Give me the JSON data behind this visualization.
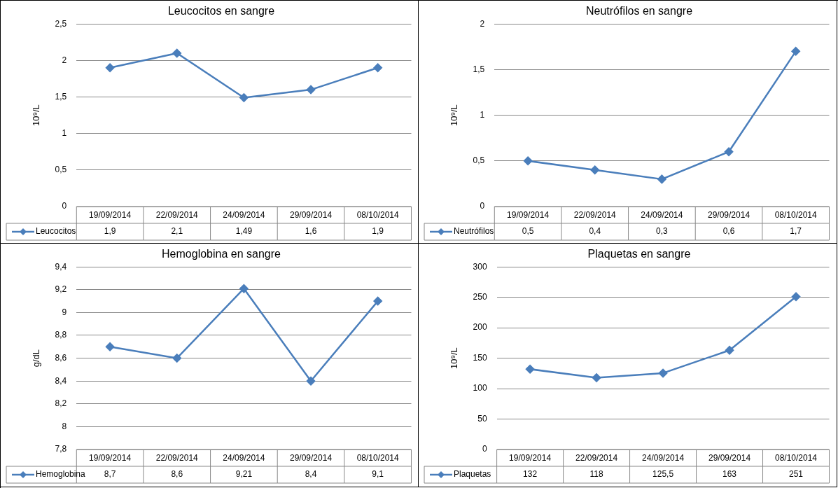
{
  "chart_data": [
    {
      "type": "line",
      "title": "Leucocitos en sangre",
      "ylabel": "10⁹/L",
      "categories": [
        "19/09/2014",
        "22/09/2014",
        "24/09/2014",
        "29/09/2014",
        "08/10/2014"
      ],
      "series": [
        {
          "name": "Leucocitos",
          "color": "#4a7ebb",
          "values": [
            1.9,
            2.1,
            1.49,
            1.6,
            1.9
          ],
          "value_labels": [
            "1,9",
            "2,1",
            "1,49",
            "1,6",
            "1,9"
          ]
        }
      ],
      "ylim": [
        0,
        2.5
      ],
      "yticks": [
        0,
        {
          "value": 0.5,
          "label": "0,5"
        },
        1,
        {
          "value": 1.5,
          "label": "1,5"
        },
        2,
        {
          "value": 2.5,
          "label": "2,5"
        }
      ],
      "grid": "y",
      "legend": "bottom",
      "marker": "diamond"
    },
    {
      "type": "line",
      "title": "Neutrófilos en sangre",
      "ylabel": "10⁹/L",
      "categories": [
        "19/09/2014",
        "22/09/2014",
        "24/09/2014",
        "29/09/2014",
        "08/10/2014"
      ],
      "series": [
        {
          "name": "Neutrófilos",
          "color": "#4a7ebb",
          "values": [
            0.5,
            0.4,
            0.3,
            0.6,
            1.7
          ],
          "value_labels": [
            "0,5",
            "0,4",
            "0,3",
            "0,6",
            "1,7"
          ]
        }
      ],
      "ylim": [
        0,
        2
      ],
      "yticks": [
        0,
        {
          "value": 0.5,
          "label": "0,5"
        },
        1,
        {
          "value": 1.5,
          "label": "1,5"
        },
        2
      ],
      "grid": "y",
      "legend": "bottom",
      "marker": "diamond"
    },
    {
      "type": "line",
      "title": "Hemoglobina en sangre",
      "ylabel": "g/dL",
      "categories": [
        "19/09/2014",
        "22/09/2014",
        "24/09/2014",
        "29/09/2014",
        "08/10/2014"
      ],
      "series": [
        {
          "name": "Hemoglobina",
          "color": "#4a7ebb",
          "values": [
            8.7,
            8.6,
            9.21,
            8.4,
            9.1
          ],
          "value_labels": [
            "8,7",
            "8,6",
            "9,21",
            "8,4",
            "9,1"
          ]
        }
      ],
      "ylim": [
        7.8,
        9.4
      ],
      "yticks": [
        {
          "value": 7.8,
          "label": "7,8"
        },
        8,
        {
          "value": 8.2,
          "label": "8,2"
        },
        {
          "value": 8.4,
          "label": "8,4"
        },
        {
          "value": 8.6,
          "label": "8,6"
        },
        {
          "value": 8.8,
          "label": "8,8"
        },
        9,
        {
          "value": 9.2,
          "label": "9,2"
        },
        {
          "value": 9.4,
          "label": "9,4"
        }
      ],
      "grid": "y",
      "legend": "bottom",
      "marker": "diamond"
    },
    {
      "type": "line",
      "title": "Plaquetas en sangre",
      "ylabel": "10⁹/L",
      "categories": [
        "19/09/2014",
        "22/09/2014",
        "24/09/2014",
        "29/09/2014",
        "08/10/2014"
      ],
      "series": [
        {
          "name": "Plaquetas",
          "color": "#4a7ebb",
          "values": [
            132,
            118,
            125.5,
            163,
            251
          ],
          "value_labels": [
            "132",
            "118",
            "125,5",
            "163",
            "251"
          ]
        }
      ],
      "ylim": [
        0,
        300
      ],
      "yticks": [
        0,
        50,
        100,
        150,
        200,
        250,
        300
      ],
      "grid": "y",
      "legend": "bottom",
      "marker": "diamond"
    }
  ]
}
